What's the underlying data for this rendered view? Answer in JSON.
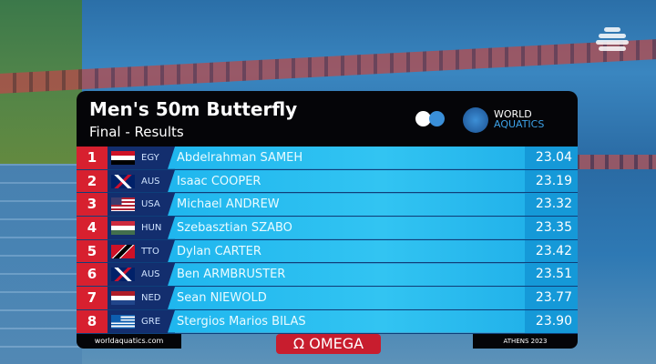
{
  "header": {
    "title": "Men's 50m Butterfly",
    "subtitle": "Final - Results",
    "brand_line1": "WORLD",
    "brand_line2": "AQUATICS"
  },
  "results": [
    {
      "rank": "1",
      "country": "EGY",
      "flag": "egypt-flag",
      "name": "Abdelrahman SAMEH",
      "time": "23.04"
    },
    {
      "rank": "2",
      "country": "AUS",
      "flag": "australia-flag",
      "name": "Isaac COOPER",
      "time": "23.19"
    },
    {
      "rank": "3",
      "country": "USA",
      "flag": "usa-flag",
      "name": "Michael ANDREW",
      "time": "23.32"
    },
    {
      "rank": "4",
      "country": "HUN",
      "flag": "hungary-flag",
      "name": "Szebasztian SZABO",
      "time": "23.35"
    },
    {
      "rank": "5",
      "country": "TTO",
      "flag": "trinidad-tobago-flag",
      "name": "Dylan CARTER",
      "time": "23.42"
    },
    {
      "rank": "6",
      "country": "AUS",
      "flag": "australia-flag",
      "name": "Ben ARMBRUSTER",
      "time": "23.51"
    },
    {
      "rank": "7",
      "country": "NED",
      "flag": "netherlands-flag",
      "name": "Sean NIEWOLD",
      "time": "23.77"
    },
    {
      "rank": "8",
      "country": "GRE",
      "flag": "greece-flag",
      "name": "Stergios Marios BILAS",
      "time": "23.90"
    }
  ],
  "footer": {
    "website": "worldaquatics.com",
    "sponsor": "Ω OMEGA",
    "location": "ATHENS 2023"
  },
  "colors": {
    "rank": "#d7202f",
    "name_bar": "#32c4f2",
    "time_bar": "#1599d8",
    "panel": "#050508"
  }
}
